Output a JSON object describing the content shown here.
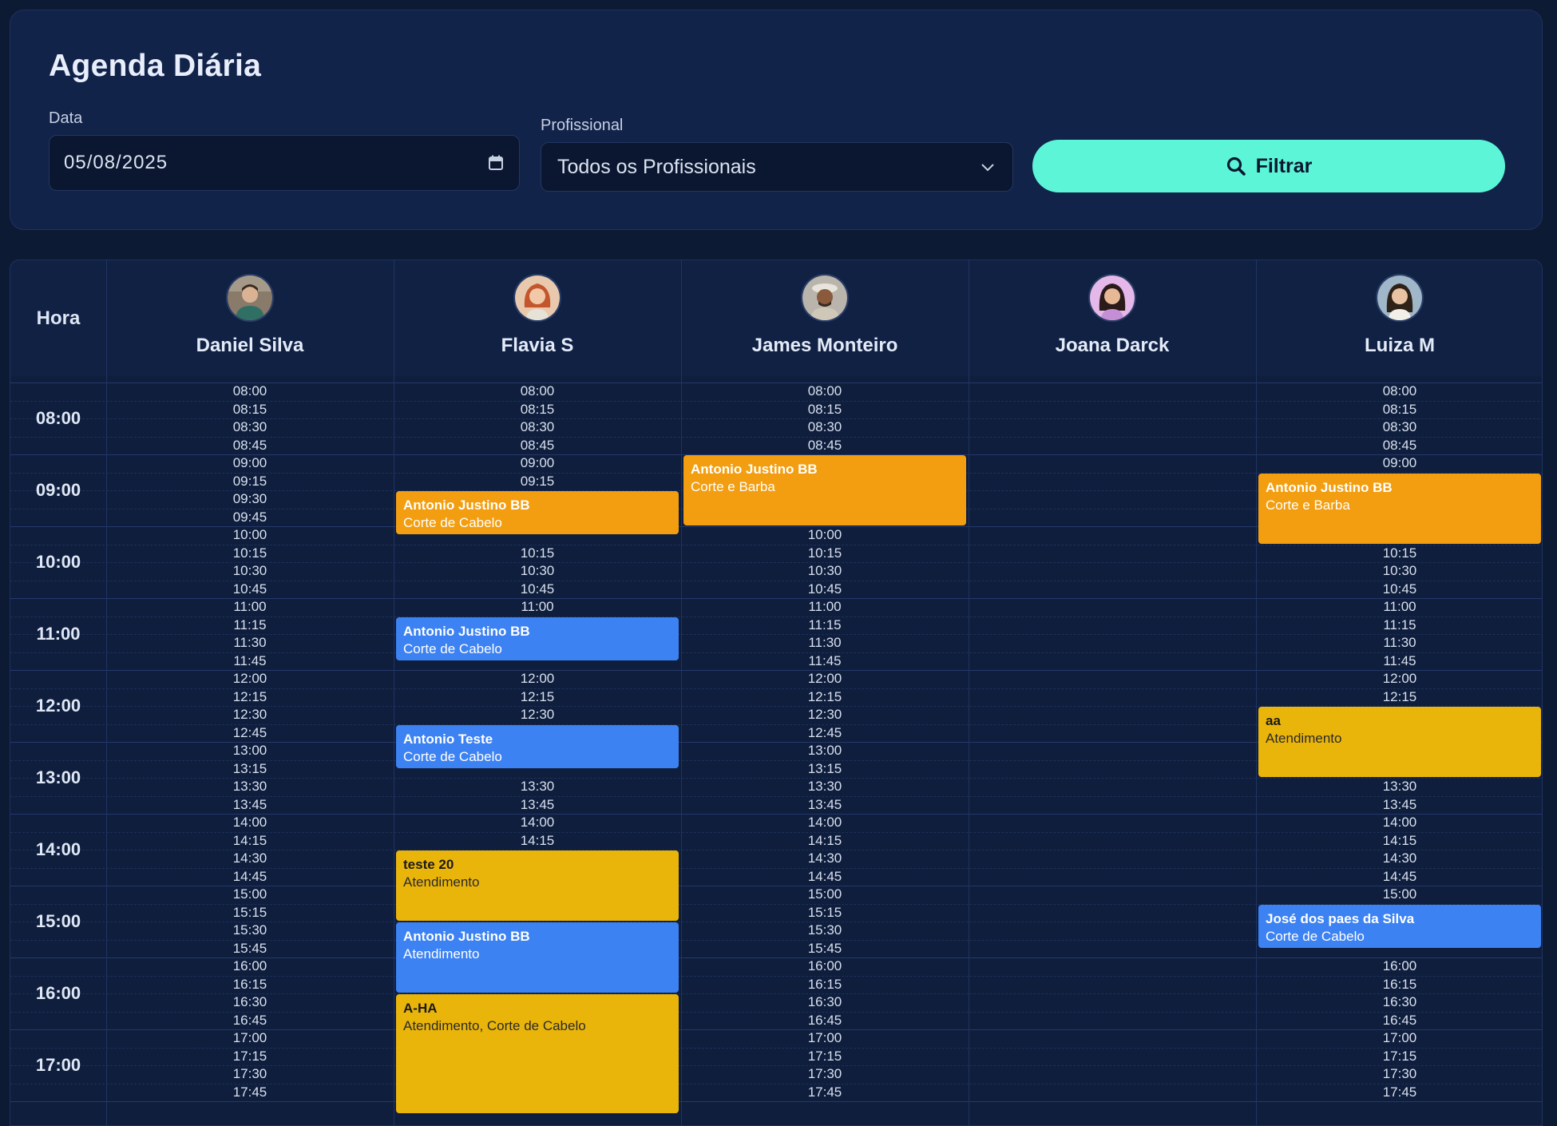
{
  "header": {
    "title": "Agenda Diária",
    "date_label": "Data",
    "date_value": "05/08/2025",
    "pro_label": "Profissional",
    "pro_value": "Todos os Profissionais",
    "filter_label": "Filtrar"
  },
  "grid": {
    "hora_label": "Hora",
    "hours": [
      "08:00",
      "09:00",
      "10:00",
      "11:00",
      "12:00",
      "13:00",
      "14:00",
      "15:00",
      "16:00",
      "17:00"
    ]
  },
  "professionals": [
    {
      "name": "Daniel Silva",
      "slots": [
        "08:00",
        "08:15",
        "08:30",
        "08:45",
        "09:00",
        "09:15",
        "09:30",
        "09:45",
        "10:00",
        "10:15",
        "10:30",
        "10:45",
        "11:00",
        "11:15",
        "11:30",
        "11:45",
        "12:00",
        "12:15",
        "12:30",
        "12:45",
        "13:00",
        "13:15",
        "13:30",
        "13:45",
        "14:00",
        "14:15",
        "14:30",
        "14:45",
        "15:00",
        "15:15",
        "15:30",
        "15:45",
        "16:00",
        "16:15",
        "16:30",
        "16:45",
        "17:00",
        "17:15",
        "17:30",
        "17:45"
      ],
      "appointments": []
    },
    {
      "name": "Flavia S",
      "slots": [
        "08:00",
        "08:15",
        "08:30",
        "08:45",
        "09:00",
        "09:15",
        "10:15",
        "10:30",
        "10:45",
        "11:00",
        "12:00",
        "12:15",
        "12:30",
        "13:30",
        "13:45",
        "14:00",
        "14:15"
      ],
      "appointments": [
        {
          "client": "Antonio Justino BB",
          "service": "Corte de Cabelo",
          "start": "09:30",
          "slots": 2.5,
          "color": "#f29e10"
        },
        {
          "client": "Antonio Justino BB",
          "service": "Corte de Cabelo",
          "start": "11:15",
          "slots": 2.5,
          "color": "#3c82f2"
        },
        {
          "client": "Antonio Teste",
          "service": "Corte de Cabelo",
          "start": "12:45",
          "slots": 2.5,
          "color": "#3c82f2"
        },
        {
          "client": "teste 20",
          "service": "Atendimento",
          "start": "14:30",
          "slots": 4,
          "color": "#eab50a"
        },
        {
          "client": "Antonio Justino BB",
          "service": "Atendimento",
          "start": "15:30",
          "slots": 4,
          "color": "#3c82f2"
        },
        {
          "client": "A-HA",
          "service": "Atendimento, Corte de Cabelo",
          "start": "16:30",
          "slots": 6.7,
          "color": "#eab50a"
        }
      ]
    },
    {
      "name": "James Monteiro",
      "slots": [
        "08:00",
        "08:15",
        "08:30",
        "08:45",
        "10:00",
        "10:15",
        "10:30",
        "10:45",
        "11:00",
        "11:15",
        "11:30",
        "11:45",
        "12:00",
        "12:15",
        "12:30",
        "12:45",
        "13:00",
        "13:15",
        "13:30",
        "13:45",
        "14:00",
        "14:15",
        "14:30",
        "14:45",
        "15:00",
        "15:15",
        "15:30",
        "15:45",
        "16:00",
        "16:15",
        "16:30",
        "16:45",
        "17:00",
        "17:15",
        "17:30",
        "17:45"
      ],
      "appointments": [
        {
          "client": "Antonio Justino BB",
          "service": "Corte e Barba",
          "start": "09:00",
          "slots": 4,
          "color": "#f29e10"
        }
      ]
    },
    {
      "name": "Joana Darck",
      "slots": [],
      "appointments": []
    },
    {
      "name": "Luiza M",
      "slots": [
        "08:00",
        "08:15",
        "08:30",
        "08:45",
        "09:00",
        "10:15",
        "10:30",
        "10:45",
        "11:00",
        "11:15",
        "11:30",
        "11:45",
        "12:00",
        "12:15",
        "13:30",
        "13:45",
        "14:00",
        "14:15",
        "14:30",
        "14:45",
        "15:00",
        "16:00",
        "16:15",
        "16:30",
        "16:45",
        "17:00",
        "17:15",
        "17:30",
        "17:45"
      ],
      "appointments": [
        {
          "client": "Antonio Justino BB",
          "service": "Corte e Barba",
          "start": "09:15",
          "slots": 4,
          "color": "#f29e10"
        },
        {
          "client": "aa",
          "service": "Atendimento",
          "start": "12:30",
          "slots": 4,
          "color": "#eab50a"
        },
        {
          "client": "José dos paes da Silva",
          "service": "Corte de Cabelo",
          "start": "15:15",
          "slots": 2.5,
          "color": "#3c82f2"
        }
      ]
    }
  ]
}
